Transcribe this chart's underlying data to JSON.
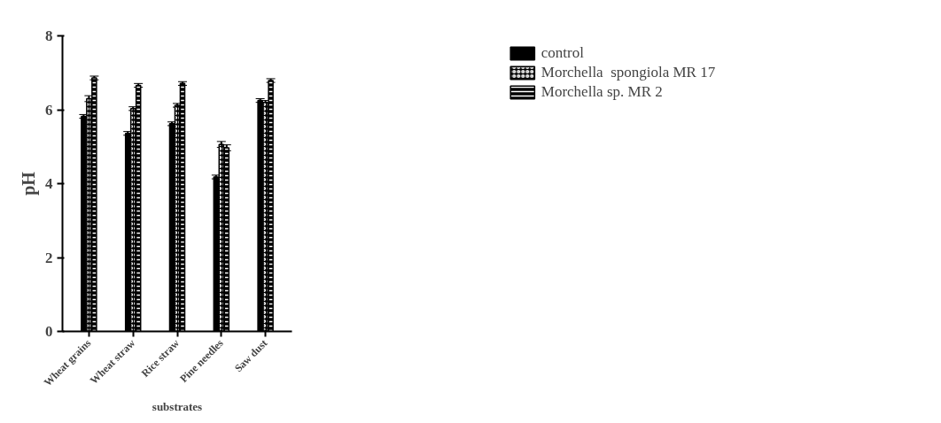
{
  "chart_data": {
    "type": "bar",
    "xlabel": "substrates",
    "ylabel": "pH",
    "categories": [
      "Wheat grains",
      "Wheat straw",
      "Rice straw",
      "Pine needles",
      "Saw dust"
    ],
    "series": [
      {
        "name": "control",
        "color": "#000000",
        "values": [
          5.82,
          5.36,
          5.62,
          4.18,
          6.25
        ],
        "errors": [
          0.05,
          0.05,
          0.05,
          0.05,
          0.05
        ]
      },
      {
        "name": "Morchella  spongiola MR 17",
        "color": "#000000",
        "values": [
          6.3,
          6.03,
          6.12,
          5.06,
          6.2
        ],
        "errors": [
          0.08,
          0.05,
          0.05,
          0.08,
          0.05
        ]
      },
      {
        "name": "Morchella sp. MR 2",
        "color": "#000000",
        "values": [
          6.86,
          6.66,
          6.71,
          4.97,
          6.79
        ],
        "errors": [
          0.05,
          0.05,
          0.05,
          0.08,
          0.05
        ]
      }
    ],
    "ylim": [
      0,
      8
    ],
    "yticks": [
      0,
      2,
      4,
      6,
      8
    ],
    "grid": false,
    "legend": "top right"
  }
}
